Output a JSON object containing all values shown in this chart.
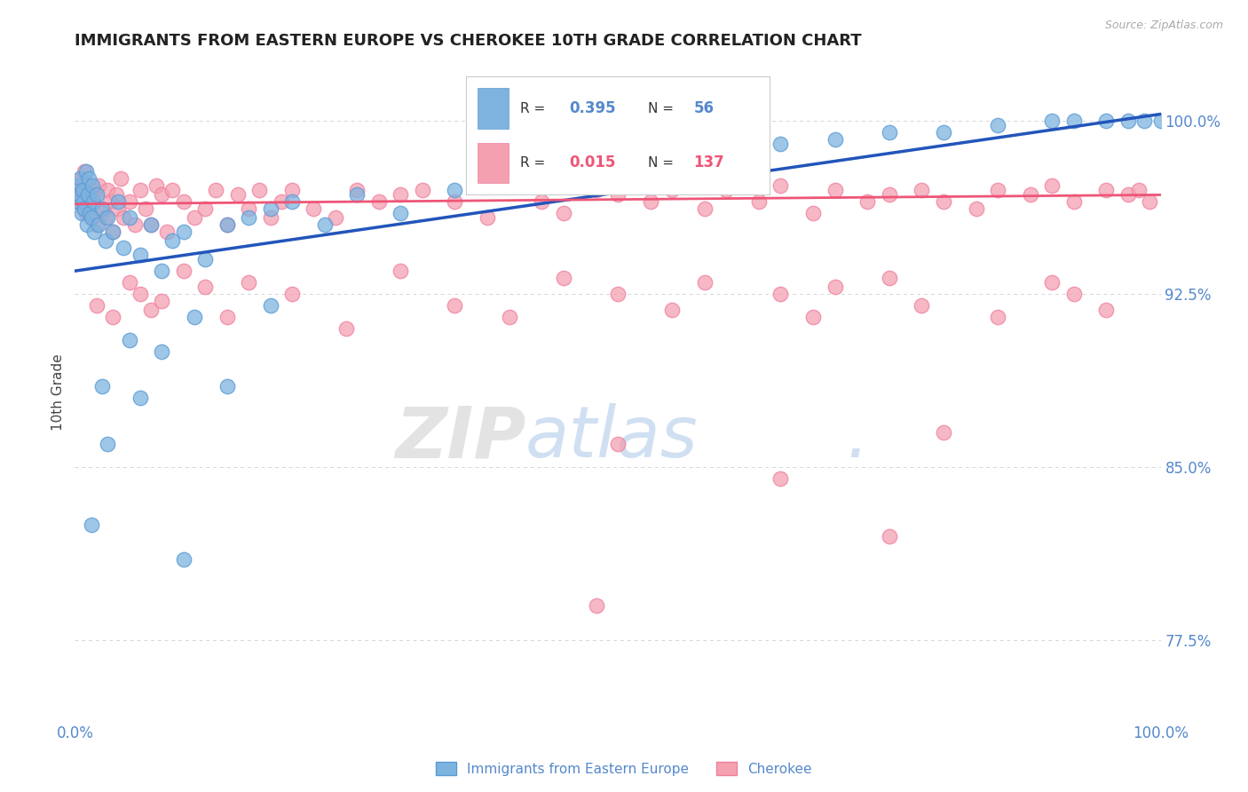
{
  "title": "IMMIGRANTS FROM EASTERN EUROPE VS CHEROKEE 10TH GRADE CORRELATION CHART",
  "source_text": "Source: ZipAtlas.com",
  "ylabel": "10th Grade",
  "x_min": 0.0,
  "x_max": 100.0,
  "y_min": 74.0,
  "y_max": 102.5,
  "y_ticks": [
    77.5,
    85.0,
    92.5,
    100.0
  ],
  "x_tick_positions": [
    0.0,
    100.0
  ],
  "x_tick_labels": [
    "0.0%",
    "100.0%"
  ],
  "y_tick_labels": [
    "77.5%",
    "85.0%",
    "92.5%",
    "100.0%"
  ],
  "blue_R": 0.395,
  "blue_N": 56,
  "pink_R": 0.015,
  "pink_N": 137,
  "blue_color": "#7EB3E0",
  "pink_color": "#F4A0B0",
  "blue_edge_color": "#5A9BD5",
  "pink_edge_color": "#F080A0",
  "blue_line_color": "#2255BB",
  "pink_line_color": "#EE5577",
  "legend_label_blue": "Immigrants from Eastern Europe",
  "legend_label_pink": "Cherokee",
  "watermark_zip": "ZIP",
  "watermark_atlas": "atlas",
  "watermark_dot": ".",
  "background_color": "#ffffff",
  "grid_color": "#bbbbbb",
  "title_color": "#222222",
  "axis_tick_color": "#5588CC",
  "blue_line_start_y": 93.5,
  "blue_line_end_y": 100.3,
  "pink_line_start_y": 96.4,
  "pink_line_end_y": 96.8,
  "blue_scatter": {
    "x": [
      0.2,
      0.3,
      0.4,
      0.5,
      0.6,
      0.7,
      0.8,
      0.9,
      1.0,
      1.1,
      1.2,
      1.3,
      1.4,
      1.5,
      1.6,
      1.7,
      1.8,
      2.0,
      2.2,
      2.5,
      2.8,
      3.0,
      3.5,
      4.0,
      4.5,
      5.0,
      6.0,
      7.0,
      8.0,
      9.0,
      10.0,
      12.0,
      14.0,
      16.0,
      18.0,
      20.0,
      23.0,
      26.0,
      30.0,
      35.0,
      40.0,
      45.0,
      50.0,
      55.0,
      60.0,
      65.0,
      70.0,
      75.0,
      80.0,
      85.0,
      90.0,
      92.0,
      95.0,
      97.0,
      98.5,
      100.0
    ],
    "y": [
      96.5,
      97.2,
      96.8,
      97.5,
      96.0,
      97.0,
      96.5,
      96.2,
      97.8,
      95.5,
      96.8,
      97.5,
      96.0,
      95.8,
      97.2,
      96.5,
      95.2,
      96.8,
      95.5,
      96.2,
      94.8,
      95.8,
      95.2,
      96.5,
      94.5,
      95.8,
      94.2,
      95.5,
      93.5,
      94.8,
      95.2,
      94.0,
      95.5,
      95.8,
      96.2,
      96.5,
      95.5,
      96.8,
      96.0,
      97.0,
      97.5,
      97.8,
      98.0,
      98.5,
      98.8,
      99.0,
      99.2,
      99.5,
      99.5,
      99.8,
      100.0,
      100.0,
      100.0,
      100.0,
      100.0,
      100.0
    ]
  },
  "blue_scatter_outliers": {
    "x": [
      1.5,
      2.5,
      3.0,
      5.0,
      6.0,
      8.0,
      10.0,
      11.0,
      14.0,
      18.0
    ],
    "y": [
      82.5,
      88.5,
      86.0,
      90.5,
      88.0,
      90.0,
      81.0,
      91.5,
      88.5,
      92.0
    ]
  },
  "pink_scatter": {
    "x": [
      0.2,
      0.4,
      0.5,
      0.6,
      0.8,
      0.9,
      1.0,
      1.2,
      1.4,
      1.5,
      1.6,
      1.8,
      2.0,
      2.2,
      2.5,
      2.8,
      3.0,
      3.2,
      3.5,
      3.8,
      4.0,
      4.2,
      4.5,
      5.0,
      5.5,
      6.0,
      6.5,
      7.0,
      7.5,
      8.0,
      8.5,
      9.0,
      10.0,
      11.0,
      12.0,
      13.0,
      14.0,
      15.0,
      16.0,
      17.0,
      18.0,
      19.0,
      20.0,
      22.0,
      24.0,
      26.0,
      28.0,
      30.0,
      32.0,
      35.0,
      38.0,
      40.0,
      43.0,
      45.0,
      48.0,
      50.0,
      53.0,
      55.0,
      58.0,
      60.0,
      63.0,
      65.0,
      68.0,
      70.0,
      73.0,
      75.0,
      78.0,
      80.0,
      83.0,
      85.0,
      88.0,
      90.0,
      92.0,
      95.0,
      97.0,
      98.0,
      99.0
    ],
    "y": [
      96.8,
      97.2,
      96.5,
      97.5,
      96.2,
      97.8,
      96.0,
      97.2,
      96.5,
      95.8,
      97.0,
      96.8,
      95.5,
      97.2,
      96.0,
      95.8,
      97.0,
      96.5,
      95.2,
      96.8,
      96.2,
      97.5,
      95.8,
      96.5,
      95.5,
      97.0,
      96.2,
      95.5,
      97.2,
      96.8,
      95.2,
      97.0,
      96.5,
      95.8,
      96.2,
      97.0,
      95.5,
      96.8,
      96.2,
      97.0,
      95.8,
      96.5,
      97.0,
      96.2,
      95.8,
      97.0,
      96.5,
      96.8,
      97.0,
      96.5,
      95.8,
      97.2,
      96.5,
      96.0,
      97.0,
      96.8,
      96.5,
      97.0,
      96.2,
      97.0,
      96.5,
      97.2,
      96.0,
      97.0,
      96.5,
      96.8,
      97.0,
      96.5,
      96.2,
      97.0,
      96.8,
      97.2,
      96.5,
      97.0,
      96.8,
      97.0,
      96.5
    ]
  },
  "pink_scatter_outliers": {
    "x": [
      2.0,
      3.5,
      5.0,
      6.0,
      7.0,
      8.0,
      10.0,
      12.0,
      14.0,
      16.0,
      20.0,
      25.0,
      30.0,
      35.0,
      40.0,
      45.0,
      50.0,
      55.0,
      58.0,
      65.0,
      68.0,
      70.0,
      75.0,
      78.0,
      85.0,
      90.0,
      92.0,
      95.0,
      50.0,
      65.0,
      80.0,
      75.0,
      48.0
    ],
    "y": [
      92.0,
      91.5,
      93.0,
      92.5,
      91.8,
      92.2,
      93.5,
      92.8,
      91.5,
      93.0,
      92.5,
      91.0,
      93.5,
      92.0,
      91.5,
      93.2,
      92.5,
      91.8,
      93.0,
      92.5,
      91.5,
      92.8,
      93.2,
      92.0,
      91.5,
      93.0,
      92.5,
      91.8,
      86.0,
      84.5,
      86.5,
      82.0,
      79.0
    ]
  }
}
